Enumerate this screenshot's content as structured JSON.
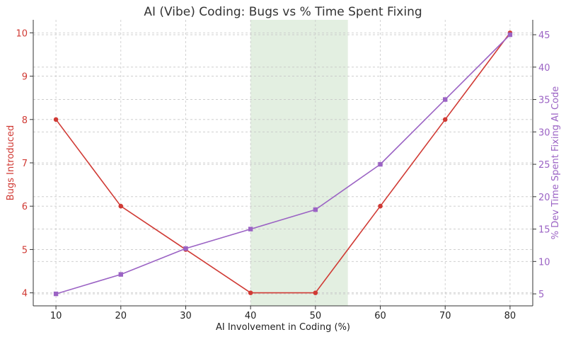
{
  "chart_data": {
    "type": "line",
    "title": "AI (Vibe) Coding: Bugs vs % Time Spent Fixing",
    "xlabel": "AI Involvement in Coding (%)",
    "ylabel": "Bugs Introduced",
    "y2label": "% Dev Time Spent Fixing AI Code",
    "x": [
      10,
      20,
      30,
      40,
      50,
      60,
      70,
      80
    ],
    "xlim": [
      6.5,
      83.5
    ],
    "ylim": [
      3.7,
      10.3
    ],
    "y2lim": [
      3.15,
      47.3
    ],
    "xticks": [
      10,
      20,
      30,
      40,
      50,
      60,
      70,
      80
    ],
    "yticks": [
      4,
      5,
      6,
      7,
      8,
      9,
      10
    ],
    "y2ticks": [
      5,
      10,
      15,
      20,
      25,
      30,
      35,
      40,
      45
    ],
    "grid": true,
    "highlight_span": {
      "x_start": 40,
      "x_end": 55,
      "color": "#e3efe1"
    },
    "series": [
      {
        "name": "Bugs Introduced",
        "axis": "left",
        "marker": "circle",
        "color": "#d03a34",
        "values": [
          8,
          6,
          5,
          4,
          4,
          6,
          8,
          10
        ]
      },
      {
        "name": "% Dev Time Spent Fixing AI Code",
        "axis": "right",
        "marker": "square",
        "color": "#9b63c4",
        "values": [
          5,
          8,
          12,
          15,
          18,
          25,
          35,
          45
        ]
      }
    ]
  }
}
